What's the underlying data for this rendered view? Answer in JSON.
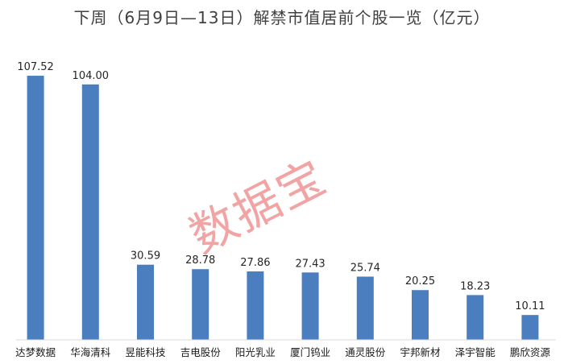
{
  "chart_data": {
    "type": "bar",
    "title": "下周（6月9日—13日）解禁市值居前个股一览（亿元）",
    "categories": [
      "达梦数据",
      "华海清科",
      "昱能科技",
      "吉电股份",
      "阳光乳业",
      "厦门钨业",
      "通灵股份",
      "宇邦新材",
      "泽宇智能",
      "鹏欣资源"
    ],
    "values": [
      107.52,
      104.0,
      30.59,
      28.78,
      27.86,
      27.43,
      25.74,
      20.25,
      18.23,
      10.11
    ],
    "value_labels": [
      "107.52",
      "104.00",
      "30.59",
      "28.78",
      "27.86",
      "27.43",
      "25.74",
      "20.25",
      "18.23",
      "10.11"
    ],
    "xlabel": "",
    "ylabel": "",
    "ylim": [
      0,
      110
    ],
    "grid": false,
    "bar_color": "#4a7ebf"
  },
  "watermark": "数据宝"
}
